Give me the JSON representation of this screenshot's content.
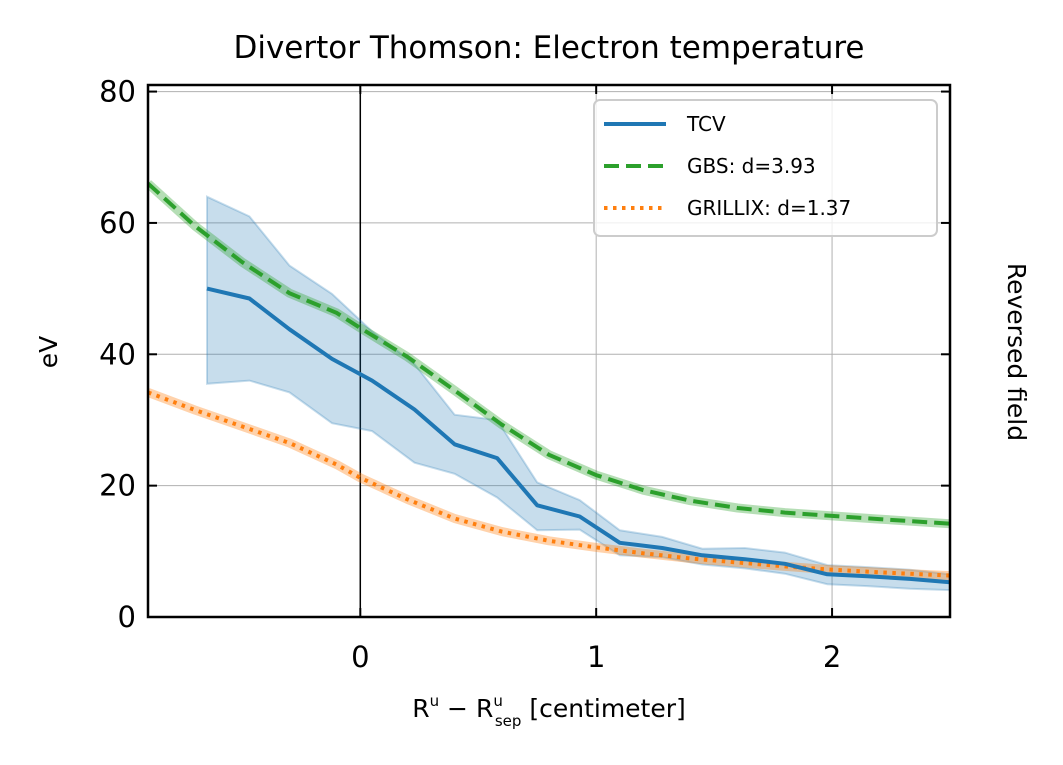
{
  "chart_data": {
    "type": "line",
    "title": "Divertor Thomson: Electron temperature",
    "xlabel": {
      "base": "R",
      "base_sup": "u",
      "minus": " − ",
      "sep_base": "R",
      "sep_sup": "u",
      "sep_sub": "sep",
      "unit": " [centimeter]"
    },
    "ylabel": "eV",
    "side_label": "Reversed field",
    "xlim": [
      -0.9,
      2.5
    ],
    "ylim": [
      0,
      81
    ],
    "xticks": [
      0,
      1,
      2
    ],
    "xtick_labels": [
      "0",
      "1",
      "2"
    ],
    "yticks": [
      0,
      20,
      40,
      60,
      80
    ],
    "ytick_labels": [
      "0",
      "20",
      "40",
      "60",
      "80"
    ],
    "grid": true,
    "vertical_line_at_x": 0,
    "legend_position": "top-right",
    "series": [
      {
        "name": "TCV",
        "style": "solid",
        "color": "#1f77b4",
        "x": [
          -0.65,
          -0.47,
          -0.3,
          -0.12,
          0.05,
          0.23,
          0.4,
          0.58,
          0.75,
          0.93,
          1.1,
          1.28,
          1.45,
          1.63,
          1.8,
          1.98,
          2.15,
          2.33,
          2.5
        ],
        "y": [
          50.0,
          48.5,
          43.8,
          39.3,
          36.0,
          31.6,
          26.3,
          24.2,
          17.0,
          15.3,
          11.3,
          10.5,
          9.4,
          8.8,
          8.1,
          6.5,
          6.2,
          5.8,
          5.3
        ],
        "band_lower": [
          35.5,
          36.0,
          34.2,
          29.5,
          28.3,
          23.5,
          21.8,
          18.2,
          13.2,
          13.3,
          9.4,
          9.1,
          8.0,
          7.4,
          6.6,
          5.0,
          4.7,
          4.3,
          4.1
        ],
        "band_upper": [
          64.0,
          61.0,
          53.5,
          49.2,
          43.5,
          38.5,
          30.8,
          30.0,
          20.5,
          17.8,
          13.2,
          12.2,
          10.4,
          10.5,
          9.8,
          7.9,
          7.6,
          7.2,
          6.5
        ]
      },
      {
        "name": "GBS: d=3.93",
        "style": "dashed",
        "color": "#2ca02c",
        "x": [
          -0.9,
          -0.7,
          -0.5,
          -0.3,
          -0.1,
          0.0,
          0.2,
          0.4,
          0.6,
          0.8,
          1.0,
          1.2,
          1.4,
          1.6,
          1.8,
          2.0,
          2.2,
          2.5
        ],
        "y": [
          66.0,
          59.5,
          54.0,
          49.3,
          46.3,
          44.0,
          39.6,
          34.5,
          29.3,
          24.7,
          21.6,
          19.3,
          17.7,
          16.6,
          15.9,
          15.4,
          14.9,
          14.2
        ]
      },
      {
        "name": "GRILLIX: d=1.37",
        "style": "dotted",
        "color": "#ff7f0e",
        "x": [
          -0.9,
          -0.7,
          -0.5,
          -0.3,
          -0.1,
          0.0,
          0.2,
          0.4,
          0.6,
          0.8,
          1.0,
          1.2,
          1.4,
          1.6,
          1.8,
          2.0,
          2.2,
          2.5
        ],
        "y": [
          34.2,
          31.5,
          29.0,
          26.5,
          23.2,
          21.2,
          17.9,
          15.0,
          13.0,
          11.6,
          10.6,
          9.7,
          8.9,
          8.3,
          7.7,
          7.2,
          6.8,
          6.3
        ]
      }
    ]
  }
}
